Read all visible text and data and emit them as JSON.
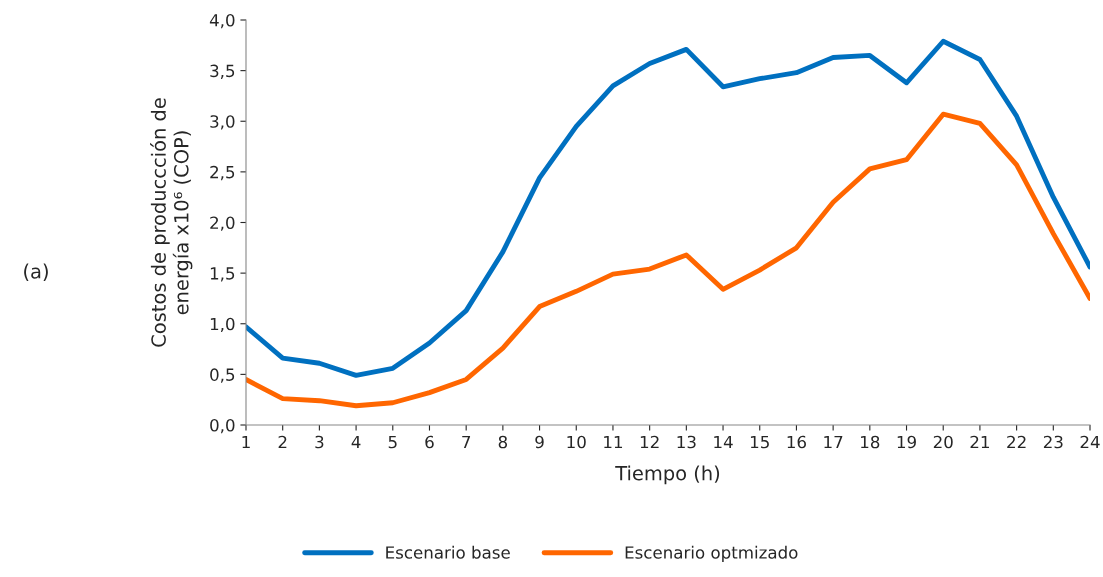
{
  "chart_data": {
    "type": "line",
    "xlabel": "Tiempo (h)",
    "ylabel": "Costos de produccción de\nenergía x10⁶ (COP)",
    "annotations": [
      "(a)"
    ],
    "x": [
      1,
      2,
      3,
      4,
      5,
      6,
      7,
      8,
      9,
      10,
      11,
      12,
      13,
      14,
      15,
      16,
      17,
      18,
      19,
      20,
      21,
      22,
      23,
      24
    ],
    "series": [
      {
        "name": "Escenario base",
        "color": "#0070c0",
        "values": [
          0.97,
          0.66,
          0.61,
          0.49,
          0.56,
          0.81,
          1.13,
          1.71,
          2.44,
          2.95,
          3.35,
          3.57,
          3.71,
          3.34,
          3.42,
          3.48,
          3.63,
          3.65,
          3.38,
          3.79,
          3.61,
          3.05,
          2.25,
          1.56
        ]
      },
      {
        "name": "Escenario optmizado",
        "color": "#ff6600",
        "values": [
          0.45,
          0.26,
          0.24,
          0.19,
          0.22,
          0.32,
          0.45,
          0.76,
          1.17,
          1.32,
          1.49,
          1.54,
          1.68,
          1.34,
          1.53,
          1.75,
          2.2,
          2.53,
          2.62,
          3.07,
          2.98,
          2.57,
          1.89,
          1.25
        ]
      }
    ],
    "xlim": [
      1,
      24
    ],
    "xticks": [
      1,
      2,
      3,
      4,
      5,
      6,
      7,
      8,
      9,
      10,
      11,
      12,
      13,
      14,
      15,
      16,
      17,
      18,
      19,
      20,
      21,
      22,
      23,
      24
    ],
    "ylim": [
      0,
      4
    ],
    "yticks": [
      {
        "value": 0,
        "label": "0,0"
      },
      {
        "value": 0.5,
        "label": "0,5"
      },
      {
        "value": 1,
        "label": "1,0"
      },
      {
        "value": 1.5,
        "label": "1,5"
      },
      {
        "value": 2,
        "label": "2,0"
      },
      {
        "value": 2.5,
        "label": "2,5"
      },
      {
        "value": 3,
        "label": "3,0"
      },
      {
        "value": 3.5,
        "label": "3,5"
      },
      {
        "value": 4,
        "label": "4,0"
      }
    ],
    "grid": false,
    "legend": "bottom",
    "marker": "none",
    "line_style": "solid"
  }
}
